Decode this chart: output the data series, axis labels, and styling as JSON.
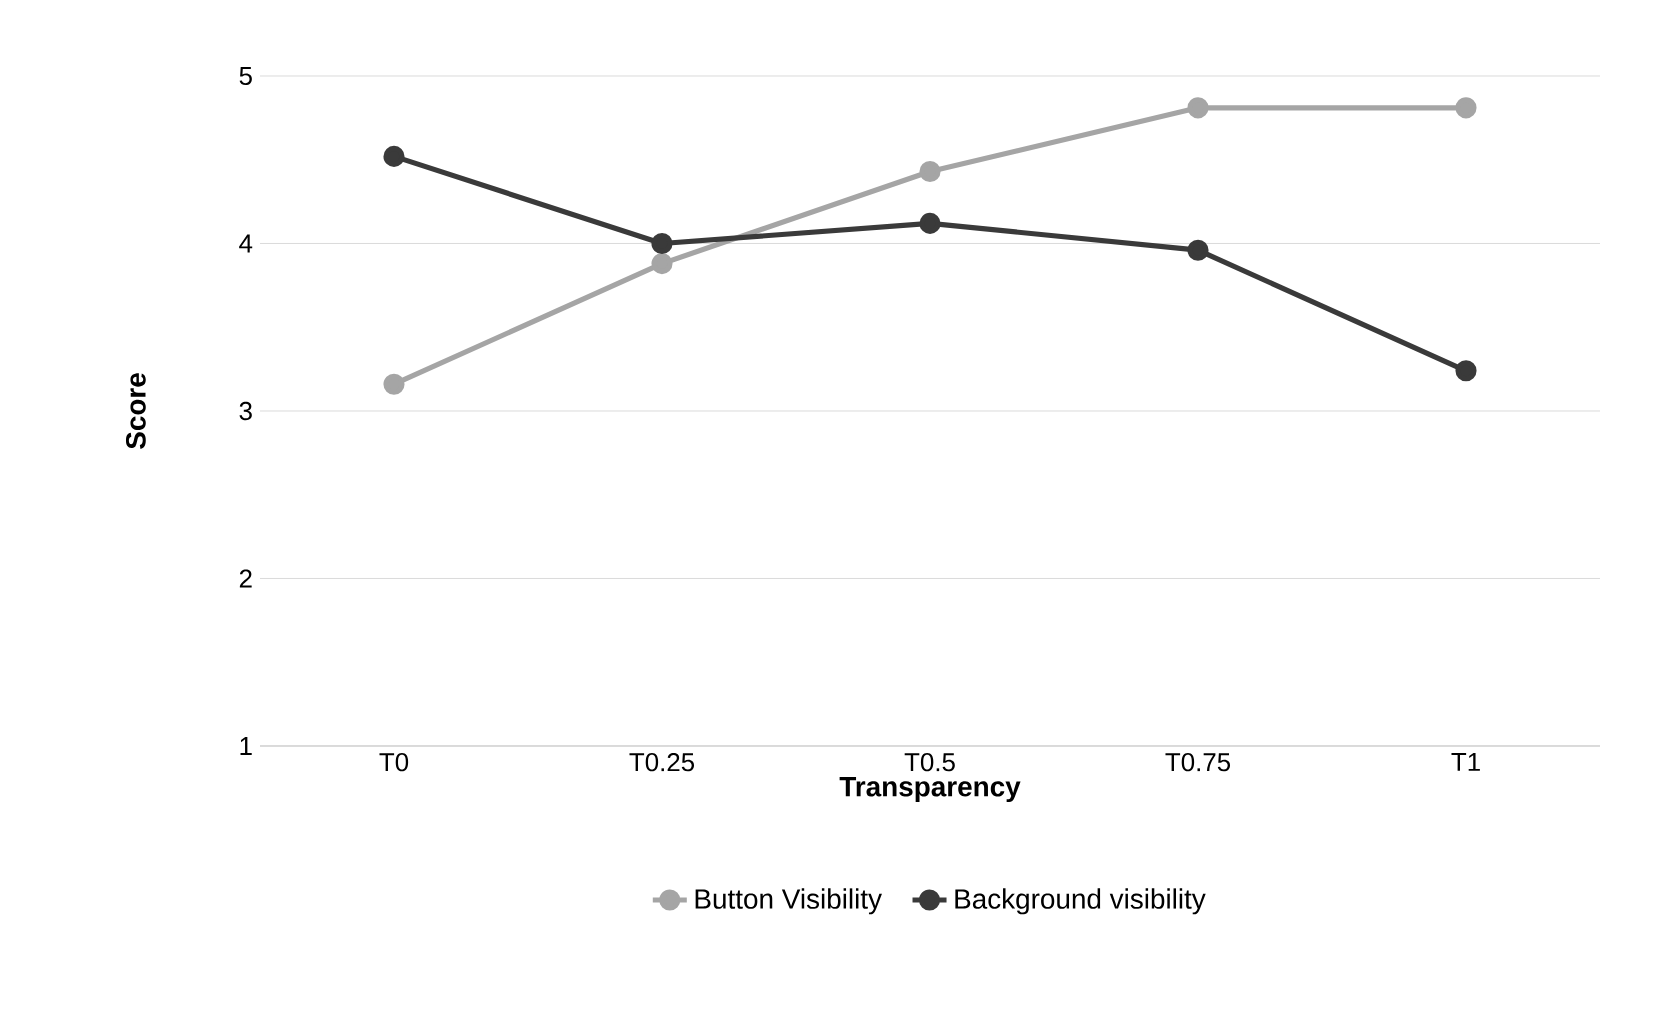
{
  "chart_data": {
    "type": "line",
    "xlabel": "Transparency",
    "ylabel": "Score",
    "categories": [
      "T0",
      "T0.25",
      "T0.5",
      "T0.75",
      "T1"
    ],
    "series": [
      {
        "name": "Button Visibility",
        "color": "#a5a5a5",
        "values": [
          3.16,
          3.88,
          4.43,
          4.81,
          4.81
        ]
      },
      {
        "name": "Background visibility",
        "color": "#3a3a3a",
        "values": [
          4.52,
          4.0,
          4.12,
          3.96,
          3.24
        ]
      }
    ],
    "ylim": [
      1,
      5
    ],
    "yticks": [
      1,
      2,
      3,
      4,
      5
    ],
    "grid": "y",
    "legend": "bottom",
    "marker": "circle"
  }
}
